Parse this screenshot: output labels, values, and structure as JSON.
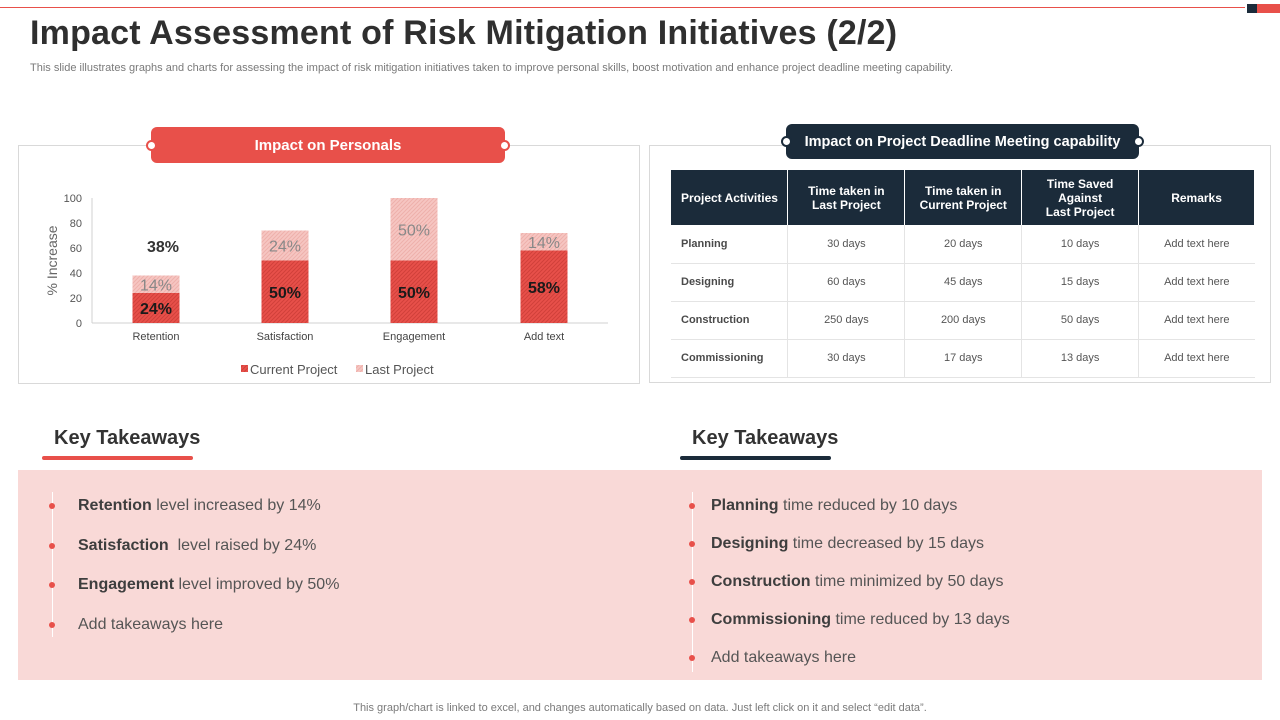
{
  "slide": {
    "title": "Impact Assessment of Risk Mitigation Initiatives (2/2)",
    "subtitle": "This slide illustrates graphs and charts for assessing the impact of risk mitigation initiatives taken to improve personal skills, boost motivation and enhance project deadline meeting capability.",
    "footer": "This graph/chart is linked to excel,  and changes automatically based on data. Just left click on it and select “edit data”."
  },
  "left_panel": {
    "heading": "Impact on Personals"
  },
  "right_panel": {
    "heading": "Impact on Project Deadline Meeting capability"
  },
  "chart_data": {
    "type": "bar",
    "stacked": true,
    "categories": [
      "Retention",
      "Satisfaction",
      "Engagement",
      "Add text"
    ],
    "series": [
      {
        "name": "Current Project",
        "values": [
          24,
          50,
          50,
          58
        ],
        "labels": [
          "24%",
          "50%",
          "50%",
          "58%"
        ]
      },
      {
        "name": "Last Project",
        "values": [
          14,
          24,
          50,
          14
        ],
        "labels": [
          "14%",
          "24%",
          "50%",
          "14%"
        ]
      }
    ],
    "annotation": "38%",
    "ylabel": "% Increase",
    "ylim": [
      0,
      100
    ],
    "yticks": [
      "0",
      "20",
      "40",
      "60",
      "80",
      "100"
    ],
    "legend": [
      "Current Project",
      "Last Project"
    ],
    "colors": {
      "current": "#e8504a",
      "last": "#f6c6c2",
      "current_label": "#1a1a1a",
      "last_label": "#888888"
    }
  },
  "table": {
    "headers": [
      "Project Activities",
      "Time taken in\nLast Project",
      "Time taken in\nCurrent Project",
      "Time Saved\nAgainst\nLast Project",
      "Remarks"
    ],
    "rows": [
      [
        "Planning",
        "30 days",
        "20 days",
        "10 days",
        "Add text here"
      ],
      [
        "Designing",
        "60 days",
        "45 days",
        "15 days",
        "Add text here"
      ],
      [
        "Construction",
        "250 days",
        "200 days",
        "50 days",
        "Add text here"
      ],
      [
        "Commissioning",
        "30 days",
        "17 days",
        "13 days",
        "Add text here"
      ]
    ]
  },
  "takeaways_left": {
    "title": "Key Takeaways",
    "items": [
      {
        "bold": "Retention",
        "rest": " level increased by 14%"
      },
      {
        "bold": "Satisfaction",
        "rest": "  level raised by 24%"
      },
      {
        "bold": "Engagement",
        "rest": " level improved by 50%"
      },
      {
        "bold": "",
        "rest": "Add takeaways here"
      }
    ]
  },
  "takeaways_right": {
    "title": "Key Takeaways",
    "items": [
      {
        "bold": "Planning",
        "rest": " time reduced by 10 days"
      },
      {
        "bold": "Designing",
        "rest": " time decreased by 15 days"
      },
      {
        "bold": "Construction",
        "rest": " time minimized by 50 days"
      },
      {
        "bold": "Commissioning",
        "rest": " time reduced by 13 days"
      },
      {
        "bold": "",
        "rest": "Add takeaways here"
      }
    ]
  }
}
